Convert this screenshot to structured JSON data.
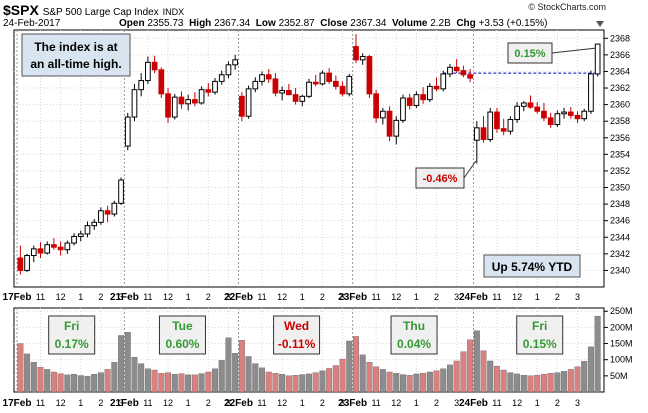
{
  "header": {
    "symbol": "$SPX",
    "name": "S&P 500 Large Cap Index",
    "exchange": "INDX",
    "date": "24-Feb-2017",
    "open_label": "Open",
    "open": "2355.73",
    "high_label": "High",
    "high": "2367.34",
    "low_label": "Low",
    "low": "2352.87",
    "close_label": "Close",
    "close": "2367.34",
    "volume_label": "Volume",
    "volume": "2.2B",
    "chg_label": "Chg",
    "chg": "+3.53 (+0.15%)",
    "brand": "© StockCharts.com"
  },
  "annotations": {
    "alltime": [
      "The index is at",
      "an all-time high."
    ],
    "ytd": "Up 5.74% YTD",
    "up_pct": "0.15%",
    "down_pct": "-0.46%"
  },
  "colors": {
    "up": "#000000",
    "down": "#cc0000",
    "accent_green": "#339933",
    "accent_red": "#cc0000",
    "callout_fill": "#f0f0f0",
    "volume_up": "#8c8c8c",
    "volume_down": "#d98080",
    "reference_line": "#0000cc"
  },
  "chart_data": [
    {
      "type": "candlestick",
      "ylim": [
        2338,
        2369
      ],
      "yticks": [
        "2368",
        "2366",
        "2364",
        "2362",
        "2360",
        "2358",
        "2356",
        "2354",
        "2352",
        "2350",
        "2348",
        "2346",
        "2344",
        "2342",
        "2340"
      ],
      "xtick_labels": [
        "17Feb",
        "11",
        "12",
        "1",
        "2",
        "3",
        "21Feb",
        "11",
        "12",
        "1",
        "2",
        "3",
        "22Feb",
        "11",
        "12",
        "1",
        "2",
        "3",
        "23Feb",
        "11",
        "12",
        "1",
        "2",
        "3",
        "24Feb",
        "11",
        "12",
        "1",
        "2",
        "3"
      ],
      "reference_level": 2363.8,
      "days": [
        {
          "label": "17Feb",
          "bars": [
            [
              2341.5,
              2343,
              2339.5,
              2340
            ],
            [
              2340,
              2342,
              2339.8,
              2341.8
            ],
            [
              2341.8,
              2343,
              2341,
              2342.6
            ],
            [
              2342.6,
              2343.4,
              2341.5,
              2342.1
            ],
            [
              2342.1,
              2343.5,
              2341.9,
              2343.1
            ],
            [
              2343.1,
              2343.9,
              2342.5,
              2342.8
            ],
            [
              2342.8,
              2343.5,
              2341.8,
              2342.5
            ],
            [
              2342.5,
              2343.6,
              2342,
              2343.3
            ],
            [
              2343.3,
              2344.5,
              2343,
              2344.1
            ],
            [
              2344.1,
              2344.8,
              2343.5,
              2344.4
            ],
            [
              2344.4,
              2345.9,
              2344,
              2345.4
            ],
            [
              2345.4,
              2346.2,
              2344.9,
              2345.8
            ],
            [
              2345.8,
              2347.6,
              2345.5,
              2347.2
            ],
            [
              2347.2,
              2347.8,
              2345.8,
              2346.8
            ],
            [
              2346.8,
              2348.4,
              2346.5,
              2348.1
            ],
            [
              2348.1,
              2351.2,
              2347.9,
              2350.9
            ]
          ]
        },
        {
          "label": "21Feb",
          "bars": [
            [
              2355,
              2359,
              2354.5,
              2358.5
            ],
            [
              2358.5,
              2362.5,
              2358,
              2361.8
            ],
            [
              2361.8,
              2363.8,
              2361,
              2362.9
            ],
            [
              2362.9,
              2365.8,
              2362.5,
              2365.1
            ],
            [
              2365.1,
              2365.9,
              2363.8,
              2364.2
            ],
            [
              2364.2,
              2364.5,
              2360.8,
              2361.3
            ],
            [
              2361.3,
              2362,
              2357.8,
              2358.5
            ],
            [
              2358.5,
              2361.3,
              2358.2,
              2360.9
            ],
            [
              2360.9,
              2361.6,
              2359.5,
              2360.1
            ],
            [
              2360.1,
              2361.2,
              2359.3,
              2360.6
            ],
            [
              2360.6,
              2361.5,
              2359.8,
              2360.2
            ],
            [
              2360.2,
              2362.2,
              2360,
              2361.8
            ],
            [
              2361.8,
              2362.6,
              2361,
              2361.5
            ],
            [
              2361.5,
              2363.2,
              2361.2,
              2362.8
            ],
            [
              2362.8,
              2364.1,
              2362.4,
              2363.6
            ],
            [
              2363.6,
              2365.2,
              2363.2,
              2364.8
            ],
            [
              2364.8,
              2366,
              2364.2,
              2365.4
            ]
          ]
        },
        {
          "label": "22Feb",
          "bars": [
            [
              2361,
              2361.5,
              2358,
              2358.6
            ],
            [
              2358.6,
              2362.3,
              2358.3,
              2361.9
            ],
            [
              2361.9,
              2363.3,
              2361.5,
              2362.8
            ],
            [
              2362.8,
              2364,
              2362.3,
              2363.6
            ],
            [
              2363.6,
              2364.3,
              2362.6,
              2363.1
            ],
            [
              2363.1,
              2363.8,
              2361,
              2361.4
            ],
            [
              2361.4,
              2362.2,
              2360.5,
              2361.7
            ],
            [
              2361.7,
              2362.5,
              2361.2,
              2361.2
            ],
            [
              2361.2,
              2362,
              2360,
              2360.4
            ],
            [
              2360.4,
              2361.2,
              2359.8,
              2361
            ],
            [
              2361,
              2363.1,
              2360.8,
              2362.7
            ],
            [
              2362.7,
              2363.6,
              2362.2,
              2362.5
            ],
            [
              2362.5,
              2364.1,
              2362.3,
              2363.8
            ],
            [
              2363.8,
              2364.4,
              2362.5,
              2362.8
            ],
            [
              2362.8,
              2363.5,
              2361.8,
              2362.2
            ],
            [
              2362.2,
              2362.8,
              2361,
              2361.3
            ],
            [
              2361.3,
              2363.7,
              2361,
              2363.4
            ]
          ]
        },
        {
          "label": "23Feb",
          "bars": [
            [
              2367,
              2368.5,
              2365,
              2365.4
            ],
            [
              2365.4,
              2366.2,
              2364.8,
              2365.8
            ],
            [
              2365.8,
              2366,
              2360.8,
              2361.3
            ],
            [
              2361.3,
              2361.8,
              2357.8,
              2358.4
            ],
            [
              2358.4,
              2359.6,
              2357.6,
              2359.2
            ],
            [
              2359.2,
              2359.8,
              2355.6,
              2356.2
            ],
            [
              2356.2,
              2358.6,
              2355.2,
              2358.1
            ],
            [
              2358.1,
              2361.2,
              2357.8,
              2360.8
            ],
            [
              2360.8,
              2361.3,
              2359.4,
              2359.9
            ],
            [
              2359.9,
              2361.6,
              2359.6,
              2361.2
            ],
            [
              2361.2,
              2362.1,
              2360.1,
              2360.6
            ],
            [
              2360.6,
              2362.6,
              2360.3,
              2362.2
            ],
            [
              2362.2,
              2363.3,
              2361.6,
              2361.9
            ],
            [
              2361.9,
              2364.1,
              2361.6,
              2363.7
            ],
            [
              2363.7,
              2364.9,
              2363.3,
              2364.5
            ],
            [
              2364.5,
              2365.5,
              2363.8,
              2364.1
            ],
            [
              2364.1,
              2364.7,
              2363.3,
              2363.6
            ],
            [
              2363.6,
              2364.3,
              2362.7,
              2363.2
            ]
          ]
        },
        {
          "label": "24Feb",
          "bars": [
            [
              2355.7,
              2358,
              2352.9,
              2357.2
            ],
            [
              2357.2,
              2358.6,
              2355.4,
              2355.8
            ],
            [
              2355.8,
              2359.6,
              2355.5,
              2359.1
            ],
            [
              2359.1,
              2359.6,
              2356.6,
              2357.1
            ],
            [
              2357.1,
              2358.3,
              2356.3,
              2356.8
            ],
            [
              2356.8,
              2358.6,
              2356.4,
              2358.2
            ],
            [
              2358.2,
              2360.3,
              2357.8,
              2359.8
            ],
            [
              2359.8,
              2360.4,
              2359.2,
              2360.2
            ],
            [
              2360.2,
              2361.1,
              2359.5,
              2359.7
            ],
            [
              2359.7,
              2360.3,
              2358.9,
              2359.2
            ],
            [
              2359.2,
              2360.2,
              2358,
              2358.4
            ],
            [
              2358.4,
              2359,
              2357.2,
              2357.6
            ],
            [
              2357.6,
              2359.3,
              2357.3,
              2358.9
            ],
            [
              2358.9,
              2359.6,
              2358.3,
              2359.1
            ],
            [
              2359.1,
              2359.7,
              2358.3,
              2358.7
            ],
            [
              2358.7,
              2359.2,
              2357.8,
              2358.3
            ],
            [
              2358.3,
              2359.5,
              2358,
              2359.2
            ],
            [
              2359.2,
              2364.1,
              2358.9,
              2363.7
            ],
            [
              2363.7,
              2367.3,
              2363.4,
              2367.3
            ]
          ]
        }
      ]
    },
    {
      "type": "bar",
      "ylabel": "Volume",
      "ylim": [
        0,
        260
      ],
      "yticks": [
        "250M",
        "200M",
        "150M",
        "100M",
        "50M"
      ],
      "xtick_labels": [
        "17Feb",
        "11",
        "12",
        "1",
        "2",
        "3",
        "21Feb",
        "11",
        "12",
        "1",
        "2",
        "3",
        "22Feb",
        "11",
        "12",
        "1",
        "2",
        "3",
        "23Feb",
        "11",
        "12",
        "1",
        "2",
        "3",
        "24Feb",
        "11",
        "12",
        "1",
        "2",
        "3"
      ],
      "days": [
        {
          "label": "17Feb",
          "day": "Fri",
          "change": "0.17%",
          "positive": true,
          "volumes": [
            150,
            118,
            92,
            77,
            70,
            62,
            57,
            53,
            55,
            51,
            49,
            55,
            60,
            70,
            92,
            175
          ]
        },
        {
          "label": "21Feb",
          "day": "Tue",
          "change": "0.60%",
          "positive": true,
          "volumes": [
            185,
            108,
            88,
            72,
            68,
            58,
            60,
            55,
            57,
            53,
            53,
            57,
            62,
            72,
            98,
            168,
            120
          ]
        },
        {
          "label": "22Feb",
          "day": "Wed",
          "change": "-0.11%",
          "positive": false,
          "volumes": [
            160,
            110,
            88,
            75,
            62,
            58,
            55,
            50,
            52,
            54,
            56,
            60,
            66,
            73,
            82,
            102,
            158
          ]
        },
        {
          "label": "23Feb",
          "day": "Thu",
          "change": "0.04%",
          "positive": true,
          "volumes": [
            172,
            115,
            92,
            78,
            70,
            62,
            58,
            54,
            52,
            56,
            58,
            62,
            66,
            72,
            84,
            96,
            125,
            162
          ]
        },
        {
          "label": "24Feb",
          "day": "Fri",
          "change": "0.15%",
          "positive": true,
          "volumes": [
            190,
            128,
            96,
            80,
            68,
            60,
            56,
            52,
            50,
            52,
            55,
            58,
            60,
            64,
            70,
            78,
            95,
            140,
            235
          ]
        }
      ]
    }
  ]
}
